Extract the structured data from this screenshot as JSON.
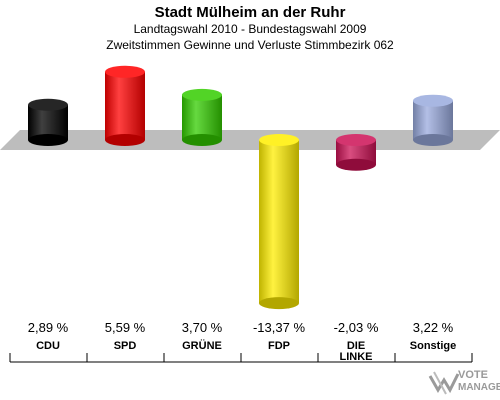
{
  "header": {
    "title": "Stadt Mülheim an der Ruhr",
    "subtitle1": "Landtagswahl 2010 - Bundestagswahl 2009",
    "subtitle2": "Zweitstimmen Gewinne und Verluste Stimmbezirk 062"
  },
  "logo": {
    "line1": "VOTE",
    "line2": "MANAGER"
  },
  "chart_data": {
    "type": "bar",
    "categories": [
      "CDU",
      "SPD",
      "GRÜNE",
      "FDP",
      "DIE LINKE",
      "Sonstige"
    ],
    "category_lines": [
      [
        "CDU"
      ],
      [
        "SPD"
      ],
      [
        "GRÜNE"
      ],
      [
        "FDP"
      ],
      [
        "DIE",
        "LINKE"
      ],
      [
        "Sonstige"
      ]
    ],
    "values": [
      2.89,
      5.59,
      3.7,
      -13.37,
      -2.03,
      3.22
    ],
    "value_labels": [
      "2,89 %",
      "5,59 %",
      "3,70 %",
      "-13,37 %",
      "-2,03 %",
      "3,22 %"
    ],
    "colors": [
      "#000000",
      "#ff0000",
      "#33cc00",
      "#ffee00",
      "#cc1155",
      "#99aadd"
    ],
    "style": "3d-cylinder"
  }
}
